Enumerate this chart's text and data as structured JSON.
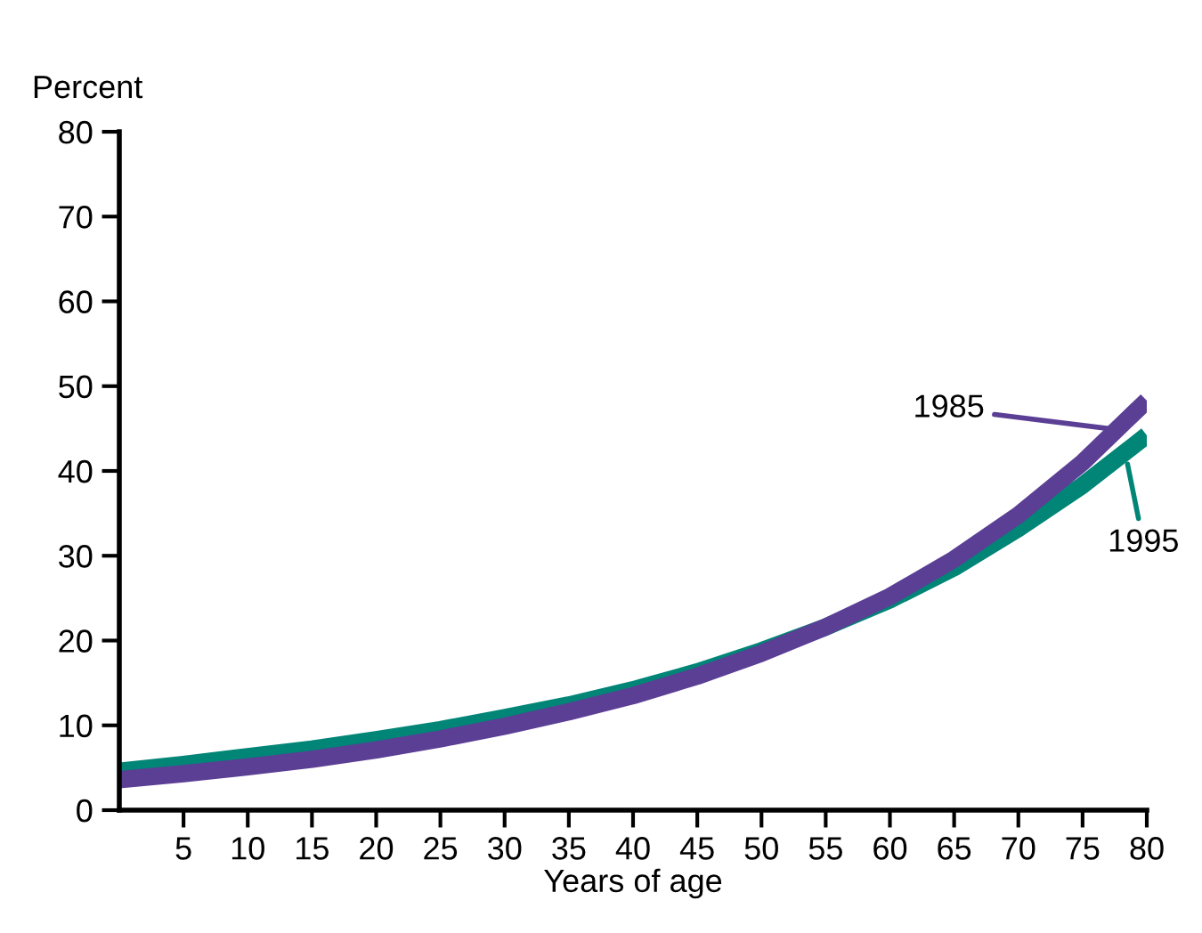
{
  "chart_data": {
    "type": "line",
    "ylabel": "Percent",
    "xlabel": "Years of age",
    "x": [
      0,
      5,
      10,
      15,
      20,
      25,
      30,
      35,
      40,
      45,
      50,
      55,
      60,
      65,
      70,
      75,
      80
    ],
    "series": [
      {
        "name": "1995",
        "color": "#008577",
        "values": [
          4.6,
          5.4,
          6.3,
          7.2,
          8.3,
          9.5,
          10.9,
          12.4,
          14.2,
          16.3,
          18.8,
          21.6,
          24.8,
          28.6,
          33.2,
          38.3,
          44.2
        ]
      },
      {
        "name": "1985",
        "color": "#5b3f95",
        "values": [
          3.6,
          4.3,
          5.1,
          6.0,
          7.1,
          8.4,
          9.9,
          11.6,
          13.5,
          15.8,
          18.5,
          21.6,
          25.2,
          29.6,
          34.8,
          41.0,
          48.3
        ]
      }
    ],
    "xlim": [
      0,
      80
    ],
    "xticks": [
      5,
      10,
      15,
      20,
      25,
      30,
      35,
      40,
      45,
      50,
      55,
      60,
      65,
      70,
      75,
      80
    ],
    "ylim": [
      0,
      80
    ],
    "yticks": [
      0,
      10,
      20,
      30,
      40,
      50,
      60,
      70,
      80
    ],
    "grid": false,
    "marker": "none",
    "line_style": "solid"
  }
}
